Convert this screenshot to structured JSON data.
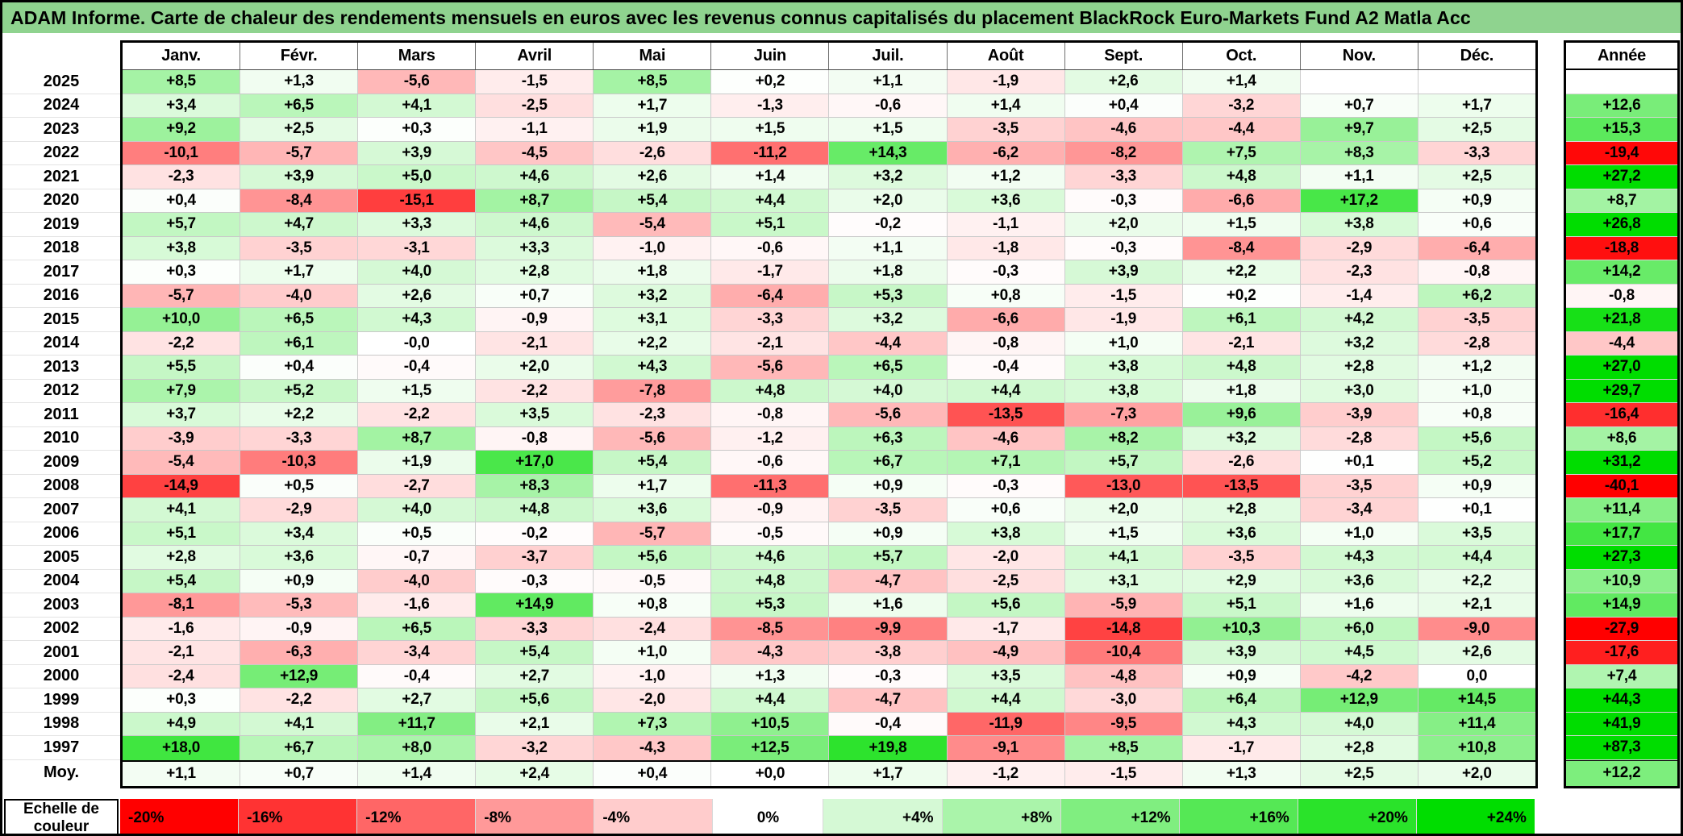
{
  "title": "ADAM Informe. Carte de chaleur des rendements mensuels en euros avec les revenus connus capitalisés du placement BlackRock Euro-Markets Fund A2 Matla Acc",
  "colors": {
    "title_bar": "#8FD38F",
    "max_negative": "#FF0000",
    "max_positive": "#00DD00",
    "neutral": "#FFFFFF"
  },
  "chart_data": {
    "type": "heatmap",
    "columns": [
      "Janv.",
      "Févr.",
      "Mars",
      "Avril",
      "Mai",
      "Juin",
      "Juil.",
      "Août",
      "Sept.",
      "Oct.",
      "Nov.",
      "Déc."
    ],
    "year_header": "Année",
    "rows": [
      {
        "label": "2025",
        "values": [
          "+8,5",
          "+1,3",
          "-5,6",
          "-1,5",
          "+8,5",
          "+0,2",
          "+1,1",
          "-1,9",
          "+2,6",
          "+1,4",
          "",
          ""
        ],
        "annee": ""
      },
      {
        "label": "2024",
        "values": [
          "+3,4",
          "+6,5",
          "+4,1",
          "-2,5",
          "+1,7",
          "-1,3",
          "-0,6",
          "+1,4",
          "+0,4",
          "-3,2",
          "+0,7",
          "+1,7"
        ],
        "annee": "+12,6"
      },
      {
        "label": "2023",
        "values": [
          "+9,2",
          "+2,5",
          "+0,3",
          "-1,1",
          "+1,9",
          "+1,5",
          "+1,5",
          "-3,5",
          "-4,6",
          "-4,4",
          "+9,7",
          "+2,5"
        ],
        "annee": "+15,3"
      },
      {
        "label": "2022",
        "values": [
          "-10,1",
          "-5,7",
          "+3,9",
          "-4,5",
          "-2,6",
          "-11,2",
          "+14,3",
          "-6,2",
          "-8,2",
          "+7,5",
          "+8,3",
          "-3,3"
        ],
        "annee": "-19,4"
      },
      {
        "label": "2021",
        "values": [
          "-2,3",
          "+3,9",
          "+5,0",
          "+4,6",
          "+2,6",
          "+1,4",
          "+3,2",
          "+1,2",
          "-3,3",
          "+4,8",
          "+1,1",
          "+2,5"
        ],
        "annee": "+27,2"
      },
      {
        "label": "2020",
        "values": [
          "+0,4",
          "-8,4",
          "-15,1",
          "+8,7",
          "+5,4",
          "+4,4",
          "+2,0",
          "+3,6",
          "-0,3",
          "-6,6",
          "+17,2",
          "+0,9"
        ],
        "annee": "+8,7"
      },
      {
        "label": "2019",
        "values": [
          "+5,7",
          "+4,7",
          "+3,3",
          "+4,6",
          "-5,4",
          "+5,1",
          "-0,2",
          "-1,1",
          "+2,0",
          "+1,5",
          "+3,8",
          "+0,6"
        ],
        "annee": "+26,8"
      },
      {
        "label": "2018",
        "values": [
          "+3,8",
          "-3,5",
          "-3,1",
          "+3,3",
          "-1,0",
          "-0,6",
          "+1,1",
          "-1,8",
          "-0,3",
          "-8,4",
          "-2,9",
          "-6,4"
        ],
        "annee": "-18,8"
      },
      {
        "label": "2017",
        "values": [
          "+0,3",
          "+1,7",
          "+4,0",
          "+2,8",
          "+1,8",
          "-1,7",
          "+1,8",
          "-0,3",
          "+3,9",
          "+2,2",
          "-2,3",
          "-0,8"
        ],
        "annee": "+14,2"
      },
      {
        "label": "2016",
        "values": [
          "-5,7",
          "-4,0",
          "+2,6",
          "+0,7",
          "+3,2",
          "-6,4",
          "+5,3",
          "+0,8",
          "-1,5",
          "+0,2",
          "-1,4",
          "+6,2"
        ],
        "annee": "-0,8"
      },
      {
        "label": "2015",
        "values": [
          "+10,0",
          "+6,5",
          "+4,3",
          "-0,9",
          "+3,1",
          "-3,3",
          "+3,2",
          "-6,6",
          "-1,9",
          "+6,1",
          "+4,2",
          "-3,5"
        ],
        "annee": "+21,8"
      },
      {
        "label": "2014",
        "values": [
          "-2,2",
          "+6,1",
          "-0,0",
          "-2,1",
          "+2,2",
          "-2,1",
          "-4,4",
          "-0,8",
          "+1,0",
          "-2,1",
          "+3,2",
          "-2,8"
        ],
        "annee": "-4,4"
      },
      {
        "label": "2013",
        "values": [
          "+5,5",
          "+0,4",
          "-0,4",
          "+2,0",
          "+4,3",
          "-5,6",
          "+6,5",
          "-0,4",
          "+3,8",
          "+4,8",
          "+2,8",
          "+1,2"
        ],
        "annee": "+27,0"
      },
      {
        "label": "2012",
        "values": [
          "+7,9",
          "+5,2",
          "+1,5",
          "-2,2",
          "-7,8",
          "+4,8",
          "+4,0",
          "+4,4",
          "+3,8",
          "+1,8",
          "+3,0",
          "+1,0"
        ],
        "annee": "+29,7"
      },
      {
        "label": "2011",
        "values": [
          "+3,7",
          "+2,2",
          "-2,2",
          "+3,5",
          "-2,3",
          "-0,8",
          "-5,6",
          "-13,5",
          "-7,3",
          "+9,6",
          "-3,9",
          "+0,8"
        ],
        "annee": "-16,4"
      },
      {
        "label": "2010",
        "values": [
          "-3,9",
          "-3,3",
          "+8,7",
          "-0,8",
          "-5,6",
          "-1,2",
          "+6,3",
          "-4,6",
          "+8,2",
          "+3,2",
          "-2,8",
          "+5,6"
        ],
        "annee": "+8,6"
      },
      {
        "label": "2009",
        "values": [
          "-5,4",
          "-10,3",
          "+1,9",
          "+17,0",
          "+5,4",
          "-0,6",
          "+6,7",
          "+7,1",
          "+5,7",
          "-2,6",
          "+0,1",
          "+5,2"
        ],
        "annee": "+31,2"
      },
      {
        "label": "2008",
        "values": [
          "-14,9",
          "+0,5",
          "-2,7",
          "+8,3",
          "+1,7",
          "-11,3",
          "+0,9",
          "-0,3",
          "-13,0",
          "-13,5",
          "-3,5",
          "+0,9"
        ],
        "annee": "-40,1"
      },
      {
        "label": "2007",
        "values": [
          "+4,1",
          "-2,9",
          "+4,0",
          "+4,8",
          "+3,6",
          "-0,9",
          "-3,5",
          "+0,6",
          "+2,0",
          "+2,8",
          "-3,4",
          "+0,1"
        ],
        "annee": "+11,4"
      },
      {
        "label": "2006",
        "values": [
          "+5,1",
          "+3,4",
          "+0,5",
          "-0,2",
          "-5,7",
          "-0,5",
          "+0,9",
          "+3,8",
          "+1,5",
          "+3,6",
          "+1,0",
          "+3,5"
        ],
        "annee": "+17,7"
      },
      {
        "label": "2005",
        "values": [
          "+2,8",
          "+3,6",
          "-0,7",
          "-3,7",
          "+5,6",
          "+4,6",
          "+5,7",
          "-2,0",
          "+4,1",
          "-3,5",
          "+4,3",
          "+4,4"
        ],
        "annee": "+27,3"
      },
      {
        "label": "2004",
        "values": [
          "+5,4",
          "+0,9",
          "-4,0",
          "-0,3",
          "-0,5",
          "+4,8",
          "-4,7",
          "-2,5",
          "+3,1",
          "+2,9",
          "+3,6",
          "+2,2"
        ],
        "annee": "+10,9"
      },
      {
        "label": "2003",
        "values": [
          "-8,1",
          "-5,3",
          "-1,6",
          "+14,9",
          "+0,8",
          "+5,3",
          "+1,6",
          "+5,6",
          "-5,9",
          "+5,1",
          "+1,6",
          "+2,1"
        ],
        "annee": "+14,9"
      },
      {
        "label": "2002",
        "values": [
          "-1,6",
          "-0,9",
          "+6,5",
          "-3,3",
          "-2,4",
          "-8,5",
          "-9,9",
          "-1,7",
          "-14,8",
          "+10,3",
          "+6,0",
          "-9,0"
        ],
        "annee": "-27,9"
      },
      {
        "label": "2001",
        "values": [
          "-2,1",
          "-6,3",
          "-3,4",
          "+5,4",
          "+1,0",
          "-4,3",
          "-3,8",
          "-4,9",
          "-10,4",
          "+3,9",
          "+4,5",
          "+2,6"
        ],
        "annee": "-17,6"
      },
      {
        "label": "2000",
        "values": [
          "-2,4",
          "+12,9",
          "-0,4",
          "+2,7",
          "-1,0",
          "+1,3",
          "-0,3",
          "+3,5",
          "-4,8",
          "+0,9",
          "-4,2",
          "0,0"
        ],
        "annee": "+7,4"
      },
      {
        "label": "1999",
        "values": [
          "+0,3",
          "-2,2",
          "+2,7",
          "+5,6",
          "-2,0",
          "+4,4",
          "-4,7",
          "+4,4",
          "-3,0",
          "+6,4",
          "+12,9",
          "+14,5"
        ],
        "annee": "+44,3"
      },
      {
        "label": "1998",
        "values": [
          "+4,9",
          "+4,1",
          "+11,7",
          "+2,1",
          "+7,3",
          "+10,5",
          "-0,4",
          "-11,9",
          "-9,5",
          "+4,3",
          "+4,0",
          "+11,4"
        ],
        "annee": "+41,9"
      },
      {
        "label": "1997",
        "values": [
          "+18,0",
          "+6,7",
          "+8,0",
          "-3,2",
          "-4,3",
          "+12,5",
          "+19,8",
          "-9,1",
          "+8,5",
          "-1,7",
          "+2,8",
          "+10,8"
        ],
        "annee": "+87,3"
      }
    ],
    "average_row": {
      "label": "Moy.",
      "values": [
        "+1,1",
        "+0,7",
        "+1,4",
        "+2,4",
        "+0,4",
        "+0,0",
        "+1,7",
        "-1,2",
        "-1,5",
        "+1,3",
        "+2,5",
        "+2,0"
      ],
      "annee": "+12,2"
    },
    "scale": {
      "label": "Echelle de couleur",
      "ticks": [
        "-20%",
        "-16%",
        "-12%",
        "-8%",
        "-4%",
        "0%",
        "+4%",
        "+8%",
        "+12%",
        "+16%",
        "+20%",
        "+24%"
      ],
      "negative_domain": [
        -20,
        0
      ],
      "positive_domain": [
        0,
        24
      ],
      "legend_position": "bottom",
      "grid": true
    }
  }
}
